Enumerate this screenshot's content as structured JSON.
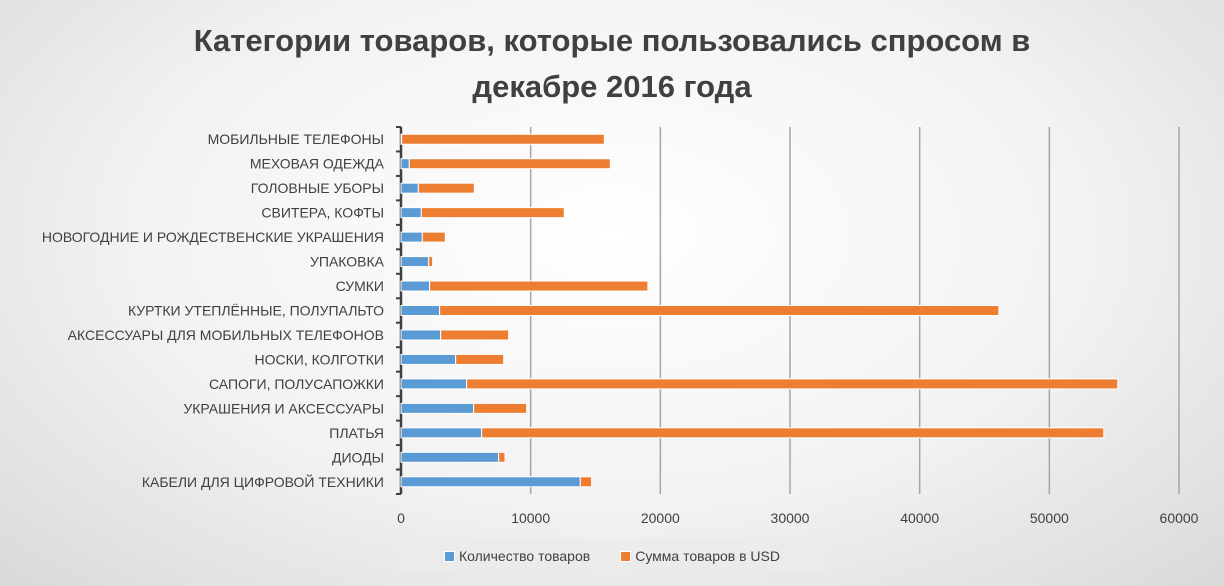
{
  "chart_data": {
    "type": "bar",
    "orientation": "horizontal",
    "stacked": true,
    "title_lines": [
      "Категории товаров, которые пользовались спросом в",
      "декабре 2016 года"
    ],
    "categories": [
      "МОБИЛЬНЫЕ ТЕЛЕФОНЫ",
      "МЕХОВАЯ ОДЕЖДА",
      "ГОЛОВНЫЕ УБОРЫ",
      "СВИТЕРА, КОФТЫ",
      "НОВОГОДНИЕ И РОЖДЕСТВЕНСКИЕ УКРАШЕНИЯ",
      "УПАКОВКА",
      "СУМКИ",
      "КУРТКИ УТЕПЛЁННЫЕ, ПОЛУПАЛЬТО",
      "АКСЕССУАРЫ ДЛЯ МОБИЛЬНЫХ ТЕЛЕФОНОВ",
      "НОСКИ, КОЛГОТКИ",
      "САПОГИ, ПОЛУСАПОЖКИ",
      "УКРАШЕНИЯ И АКСЕССУАРЫ",
      "ПЛАТЬЯ",
      "ДИОДЫ",
      "КАБЕЛИ ДЛЯ ЦИФРОВОЙ ТЕХНИКИ"
    ],
    "series": [
      {
        "name": "Количество товаров",
        "color": "#5b9bd5",
        "values": [
          50,
          640,
          1335,
          1565,
          1645,
          2135,
          2210,
          2980,
          3060,
          4215,
          5065,
          5605,
          6220,
          7530,
          13825
        ]
      },
      {
        "name": "Сумма товаров в USD",
        "color": "#ed7d31",
        "values": [
          15630,
          15500,
          4315,
          11025,
          1770,
          305,
          16830,
          43130,
          5240,
          3705,
          50215,
          4085,
          47980,
          490,
          875
        ]
      }
    ],
    "xlim": [
      0,
      60000
    ],
    "xticks": [
      "0",
      "10000",
      "20000",
      "30000",
      "40000",
      "50000",
      "60000"
    ],
    "grid": "vertical",
    "legend": "bottom"
  }
}
